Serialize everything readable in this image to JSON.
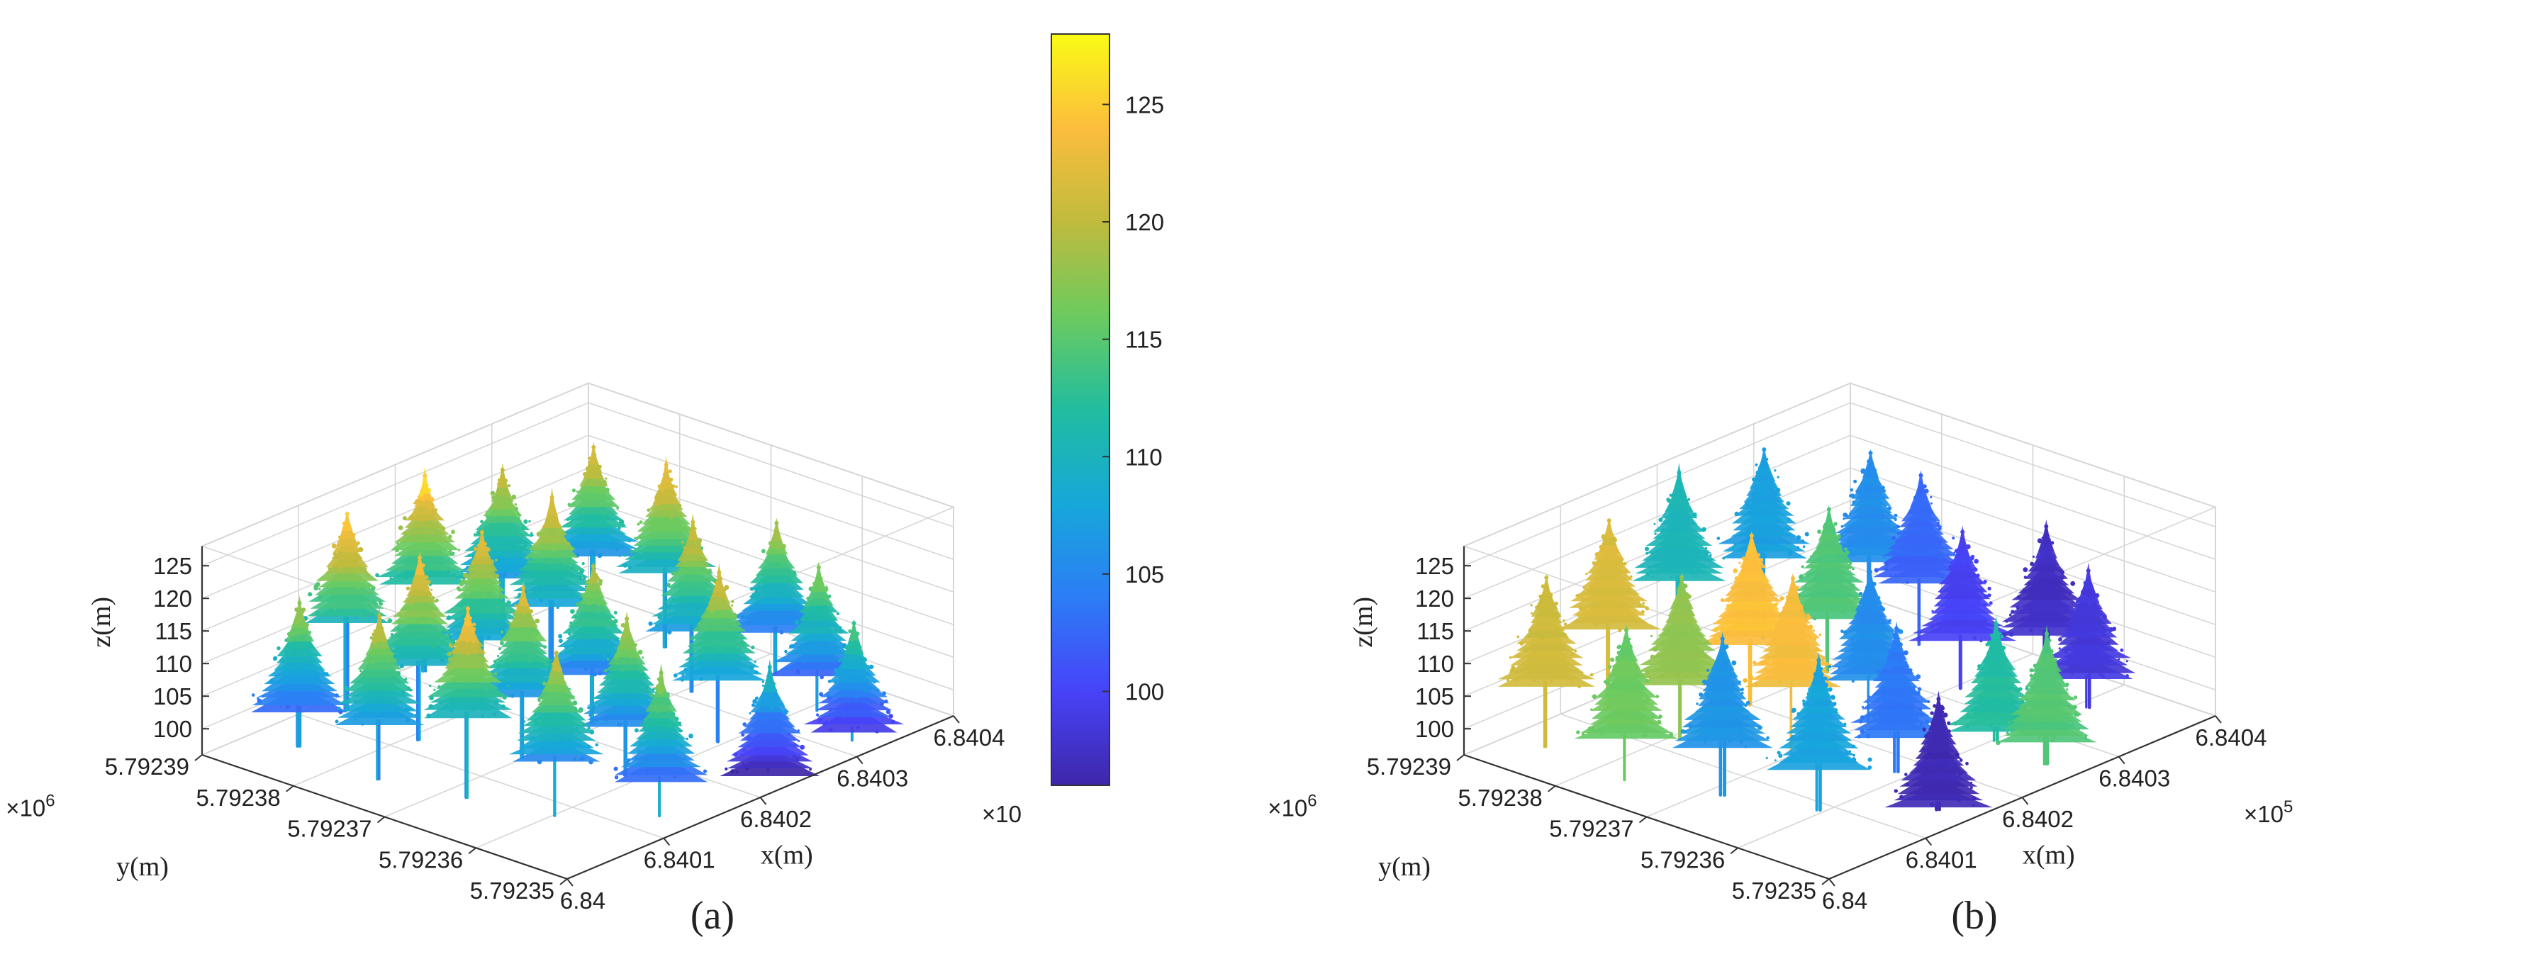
{
  "figure": {
    "colormap": [
      "#3e26a8",
      "#4743f8",
      "#2c7df6",
      "#16a8d9",
      "#21bda0",
      "#6ccb5f",
      "#c0bb3d",
      "#fcbd3d",
      "#f9fb15"
    ],
    "trunk_color": "#2b6fd0",
    "axis_color": "#333333",
    "grid_color": "#d6d6d6"
  },
  "chart_data": [
    {
      "type": "scatter",
      "panel_label": "(a)",
      "title": "",
      "xlabel": "x(m)",
      "ylabel": "y(m)",
      "zlabel": "z(m)",
      "x_ticks": [
        "6.84",
        "6.8401",
        "6.8402",
        "6.8403",
        "6.8404"
      ],
      "x_exponent": "×10",
      "y_ticks": [
        "5.79235",
        "5.79236",
        "5.79237",
        "5.79238",
        "5.79239"
      ],
      "y_exponent": "×10",
      "exponent_power_y": "6",
      "z_ticks": [
        "100",
        "105",
        "110",
        "115",
        "120",
        "125"
      ],
      "zlim": [
        96,
        128
      ],
      "color_by": "height",
      "colorbar": {
        "ticks": [
          "100",
          "105",
          "110",
          "115",
          "120",
          "125"
        ],
        "range": [
          96,
          128
        ]
      },
      "trees": [
        {
          "x": 0.12,
          "y": 0.86,
          "top": 117,
          "v": 0.62
        },
        {
          "x": 0.3,
          "y": 0.92,
          "top": 125,
          "v": 0.72
        },
        {
          "x": 0.52,
          "y": 0.94,
          "top": 125,
          "v": 0.75
        },
        {
          "x": 0.74,
          "y": 0.96,
          "top": 120,
          "v": 0.68
        },
        {
          "x": 0.9,
          "y": 0.88,
          "top": 121,
          "v": 0.66
        },
        {
          "x": 0.1,
          "y": 0.62,
          "top": 120,
          "v": 0.7
        },
        {
          "x": 0.28,
          "y": 0.7,
          "top": 123,
          "v": 0.74
        },
        {
          "x": 0.46,
          "y": 0.72,
          "top": 122,
          "v": 0.72
        },
        {
          "x": 0.66,
          "y": 0.74,
          "top": 122,
          "v": 0.7
        },
        {
          "x": 0.88,
          "y": 0.66,
          "top": 123,
          "v": 0.73
        },
        {
          "x": 0.14,
          "y": 0.42,
          "top": 124,
          "v": 0.76
        },
        {
          "x": 0.34,
          "y": 0.48,
          "top": 121,
          "v": 0.71
        },
        {
          "x": 0.54,
          "y": 0.5,
          "top": 119,
          "v": 0.69
        },
        {
          "x": 0.76,
          "y": 0.46,
          "top": 121,
          "v": 0.7
        },
        {
          "x": 0.92,
          "y": 0.4,
          "top": 118,
          "v": 0.64
        },
        {
          "x": 0.18,
          "y": 0.22,
          "top": 120,
          "v": 0.71
        },
        {
          "x": 0.4,
          "y": 0.26,
          "top": 119,
          "v": 0.7
        },
        {
          "x": 0.62,
          "y": 0.24,
          "top": 121,
          "v": 0.72
        },
        {
          "x": 0.84,
          "y": 0.2,
          "top": 117,
          "v": 0.63
        },
        {
          "x": 0.3,
          "y": 0.06,
          "top": 117,
          "v": 0.63
        },
        {
          "x": 0.6,
          "y": 0.08,
          "top": 110,
          "v": 0.5
        },
        {
          "x": 0.78,
          "y": 0.04,
          "top": 113,
          "v": 0.56
        }
      ]
    },
    {
      "type": "scatter",
      "panel_label": "(b)",
      "title": "",
      "xlabel": "x(m)",
      "ylabel": "y(m)",
      "zlabel": "z(m)",
      "x_ticks": [
        "6.84",
        "6.8401",
        "6.8402",
        "6.8403",
        "6.8404"
      ],
      "x_exponent": "×10",
      "exponent_power_x": "5",
      "y_ticks": [
        "5.79235",
        "5.79236",
        "5.79237",
        "5.79238",
        "5.79239"
      ],
      "y_exponent": "×10",
      "exponent_power_y": "6",
      "z_ticks": [
        "100",
        "105",
        "110",
        "115",
        "120",
        "125"
      ],
      "zlim": [
        96,
        128
      ],
      "color_by": "tree segment",
      "trees": [
        {
          "x": 0.1,
          "y": 0.88,
          "top": 121,
          "v": 0.78
        },
        {
          "x": 0.3,
          "y": 0.92,
          "top": 124,
          "v": 0.8
        },
        {
          "x": 0.5,
          "y": 0.94,
          "top": 126,
          "v": 0.45
        },
        {
          "x": 0.72,
          "y": 0.94,
          "top": 124,
          "v": 0.35
        },
        {
          "x": 0.92,
          "y": 0.86,
          "top": 120,
          "v": 0.3
        },
        {
          "x": 0.08,
          "y": 0.64,
          "top": 118,
          "v": 0.62
        },
        {
          "x": 0.28,
          "y": 0.7,
          "top": 120,
          "v": 0.68
        },
        {
          "x": 0.48,
          "y": 0.72,
          "top": 121,
          "v": 0.88
        },
        {
          "x": 0.68,
          "y": 0.72,
          "top": 120,
          "v": 0.58
        },
        {
          "x": 0.88,
          "y": 0.68,
          "top": 121,
          "v": 0.2
        },
        {
          "x": 0.14,
          "y": 0.44,
          "top": 119,
          "v": 0.32
        },
        {
          "x": 0.36,
          "y": 0.48,
          "top": 122,
          "v": 0.86
        },
        {
          "x": 0.56,
          "y": 0.48,
          "top": 118,
          "v": 0.3
        },
        {
          "x": 0.78,
          "y": 0.46,
          "top": 119,
          "v": 0.12
        },
        {
          "x": 0.94,
          "y": 0.4,
          "top": 117,
          "v": 0.04
        },
        {
          "x": 0.2,
          "y": 0.24,
          "top": 118,
          "v": 0.36
        },
        {
          "x": 0.42,
          "y": 0.26,
          "top": 117,
          "v": 0.24
        },
        {
          "x": 0.64,
          "y": 0.22,
          "top": 113,
          "v": 0.5
        },
        {
          "x": 0.86,
          "y": 0.2,
          "top": 116,
          "v": 0.08
        },
        {
          "x": 0.34,
          "y": 0.06,
          "top": 112,
          "v": 0.02
        },
        {
          "x": 0.62,
          "y": 0.06,
          "top": 115,
          "v": 0.58
        }
      ]
    }
  ]
}
